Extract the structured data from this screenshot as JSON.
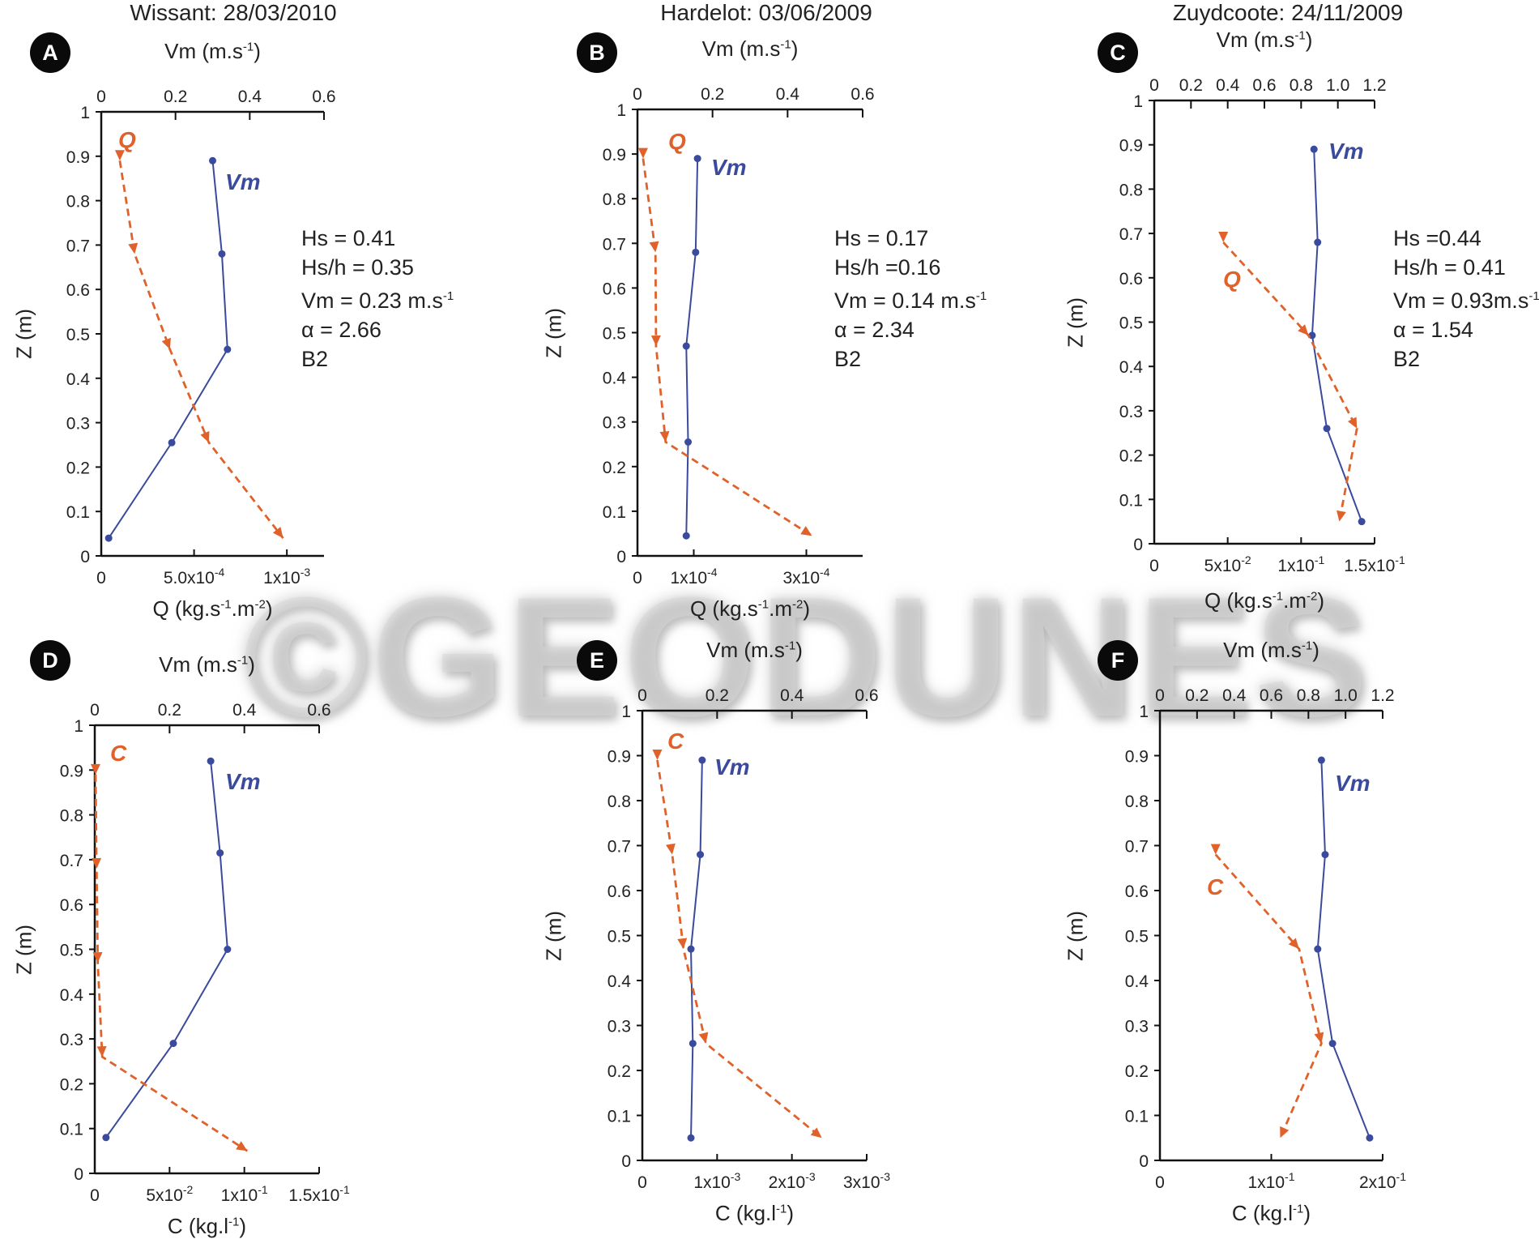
{
  "watermark": "©GEODUNES",
  "panels": [
    {
      "id": "A",
      "site": "Wissant: 28/03/2010",
      "top_axis_title": "Vm (m.s-1)",
      "bottom_axis_title": "Q (kg.s-1.m-2)",
      "ylabel": "Z (m)",
      "top_ticks": [
        "0",
        "0.2",
        "0.4",
        "0.6"
      ],
      "bottom_ticks": [
        "0",
        "5.0x10-4",
        "1x10-3"
      ],
      "stats": [
        "Hs = 0.41",
        "Hs/h = 0.35",
        "Vm = 0.23 m.s-1",
        "α = 2.66",
        "B2"
      ],
      "vm_label": "Vm",
      "sed_label": "Q",
      "chart_data": {
        "type": "line",
        "y": {
          "label": "Z (m)",
          "range": [
            0,
            1
          ],
          "ticks": [
            "0",
            "0.1",
            "0.2",
            "0.3",
            "0.4",
            "0.5",
            "0.6",
            "0.7",
            "0.8",
            "0.9",
            "1"
          ]
        },
        "x_top": {
          "label": "Vm (m.s-1)",
          "range": [
            0,
            0.6
          ]
        },
        "x_bottom": {
          "label": "Q (kg.s-1.m-2)",
          "range": [
            0,
            0.0012
          ]
        },
        "series": [
          {
            "name": "Vm",
            "axis": "top",
            "points": [
              [
                0.3,
                0.89
              ],
              [
                0.325,
                0.68
              ],
              [
                0.34,
                0.465
              ],
              [
                0.19,
                0.255
              ],
              [
                0.02,
                0.04
              ]
            ]
          },
          {
            "name": "Q",
            "axis": "bottom",
            "points": [
              [
                0.0001,
                0.89
              ],
              [
                0.00018,
                0.68
              ],
              [
                0.00037,
                0.465
              ],
              [
                0.00058,
                0.255
              ],
              [
                0.00098,
                0.04
              ]
            ]
          }
        ]
      }
    },
    {
      "id": "B",
      "site": "Hardelot: 03/06/2009",
      "top_axis_title": "Vm (m.s-1)",
      "bottom_axis_title": "Q (kg.s-1.m-2)",
      "ylabel": "Z (m)",
      "top_ticks": [
        "0",
        "0.2",
        "0.4",
        "0.6"
      ],
      "bottom_ticks": [
        "0",
        "1x10-4",
        "3x10-4"
      ],
      "stats": [
        "Hs = 0.17",
        "Hs/h =0.16",
        "Vm = 0.14 m.s-1",
        "α = 2.34",
        "B2"
      ],
      "vm_label": "Vm",
      "sed_label": "Q",
      "chart_data": {
        "type": "line",
        "y": {
          "label": "Z (m)",
          "range": [
            0,
            1
          ],
          "ticks": [
            "0",
            "0.1",
            "0.2",
            "0.3",
            "0.4",
            "0.5",
            "0.6",
            "0.7",
            "0.8",
            "0.9",
            "1"
          ]
        },
        "x_top": {
          "label": "Vm (m.s-1)",
          "range": [
            0,
            0.6
          ]
        },
        "x_bottom": {
          "label": "Q (kg.s-1.m-2)",
          "range": [
            0,
            0.0004
          ]
        },
        "series": [
          {
            "name": "Vm",
            "axis": "top",
            "points": [
              [
                0.16,
                0.89
              ],
              [
                0.155,
                0.68
              ],
              [
                0.13,
                0.47
              ],
              [
                0.135,
                0.255
              ],
              [
                0.13,
                0.045
              ]
            ]
          },
          {
            "name": "Q",
            "axis": "bottom",
            "points": [
              [
                1e-05,
                0.89
              ],
              [
                3.2e-05,
                0.68
              ],
              [
                3.3e-05,
                0.47
              ],
              [
                5e-05,
                0.255
              ],
              [
                0.00031,
                0.045
              ]
            ]
          }
        ]
      }
    },
    {
      "id": "C",
      "site": "Zuydcoote: 24/11/2009",
      "top_axis_title": "Vm (m.s-1)",
      "bottom_axis_title": "Q (kg.s-1.m-2)",
      "ylabel": "Z (m)",
      "top_ticks": [
        "0",
        "0.2",
        "0.4",
        "0.6",
        "0.8",
        "1.0",
        "1.2"
      ],
      "bottom_ticks": [
        "0",
        "5x10-2",
        "1x10-1",
        "1.5x10-1"
      ],
      "stats": [
        "Hs =0.44",
        "Hs/h = 0.41",
        "Vm = 0.93m.s-1",
        "α = 1.54",
        "B2"
      ],
      "vm_label": "Vm",
      "sed_label": "Q",
      "chart_data": {
        "type": "line",
        "y": {
          "label": "Z (m)",
          "range": [
            0,
            1
          ],
          "ticks": [
            "0",
            "0.1",
            "0.2",
            "0.3",
            "0.4",
            "0.5",
            "0.6",
            "0.7",
            "0.8",
            "0.9",
            "1"
          ]
        },
        "x_top": {
          "label": "Vm (m.s-1)",
          "range": [
            0,
            1.2
          ]
        },
        "x_bottom": {
          "label": "Q (kg.s-1.m-2)",
          "range": [
            0,
            0.15
          ]
        },
        "series": [
          {
            "name": "Vm",
            "axis": "top",
            "points": [
              [
                0.87,
                0.89
              ],
              [
                0.89,
                0.68
              ],
              [
                0.86,
                0.47
              ],
              [
                0.94,
                0.26
              ],
              [
                1.13,
                0.05
              ]
            ]
          },
          {
            "name": "Q",
            "axis": "bottom",
            "points": [
              [
                0.047,
                0.68
              ],
              [
                0.105,
                0.47
              ],
              [
                0.138,
                0.26
              ],
              [
                0.126,
                0.05
              ]
            ]
          }
        ]
      }
    },
    {
      "id": "D",
      "site": "",
      "top_axis_title": "Vm (m.s-1)",
      "bottom_axis_title": "C (kg.l-1)",
      "ylabel": "Z (m)",
      "top_ticks": [
        "0",
        "0.2",
        "0.4",
        "0.6"
      ],
      "bottom_ticks": [
        "0",
        "5x10-2",
        "1x10-1",
        "1.5x10-1"
      ],
      "stats": [],
      "vm_label": "Vm",
      "sed_label": "C",
      "chart_data": {
        "type": "line",
        "y": {
          "label": "Z (m)",
          "range": [
            0,
            1
          ],
          "ticks": [
            "0",
            "0.1",
            "0.2",
            "0.3",
            "0.4",
            "0.5",
            "0.6",
            "0.7",
            "0.8",
            "0.9",
            "1"
          ]
        },
        "x_top": {
          "label": "Vm (m.s-1)",
          "range": [
            0,
            0.6
          ]
        },
        "x_bottom": {
          "label": "C (kg.l-1)",
          "range": [
            0,
            0.15
          ]
        },
        "series": [
          {
            "name": "Vm",
            "axis": "top",
            "points": [
              [
                0.31,
                0.92
              ],
              [
                0.335,
                0.715
              ],
              [
                0.355,
                0.5
              ],
              [
                0.21,
                0.29
              ],
              [
                0.03,
                0.08
              ]
            ]
          },
          {
            "name": "C",
            "axis": "bottom",
            "points": [
              [
                0.0005,
                0.89
              ],
              [
                0.0012,
                0.68
              ],
              [
                0.002,
                0.47
              ],
              [
                0.005,
                0.26
              ],
              [
                0.102,
                0.05
              ]
            ]
          }
        ]
      }
    },
    {
      "id": "E",
      "site": "",
      "top_axis_title": "Vm (m.s-1)",
      "bottom_axis_title": "C (kg.l-1)",
      "ylabel": "Z (m)",
      "top_ticks": [
        "0",
        "0.2",
        "0.4",
        "0.6"
      ],
      "bottom_ticks": [
        "0",
        "1x10-3",
        "2x10-3",
        "3x10-3"
      ],
      "stats": [],
      "vm_label": "Vm",
      "sed_label": "C",
      "chart_data": {
        "type": "line",
        "y": {
          "label": "Z (m)",
          "range": [
            0,
            1
          ],
          "ticks": [
            "0",
            "0.1",
            "0.2",
            "0.3",
            "0.4",
            "0.5",
            "0.6",
            "0.7",
            "0.8",
            "0.9",
            "1"
          ]
        },
        "x_top": {
          "label": "Vm (m.s-1)",
          "range": [
            0,
            0.6
          ]
        },
        "x_bottom": {
          "label": "C (kg.l-1)",
          "range": [
            0,
            0.003
          ]
        },
        "series": [
          {
            "name": "Vm",
            "axis": "top",
            "points": [
              [
                0.16,
                0.89
              ],
              [
                0.155,
                0.68
              ],
              [
                0.13,
                0.47
              ],
              [
                0.135,
                0.26
              ],
              [
                0.13,
                0.05
              ]
            ]
          },
          {
            "name": "C",
            "axis": "bottom",
            "points": [
              [
                0.0002,
                0.89
              ],
              [
                0.0004,
                0.68
              ],
              [
                0.00055,
                0.47
              ],
              [
                0.00085,
                0.26
              ],
              [
                0.0024,
                0.05
              ]
            ]
          }
        ]
      }
    },
    {
      "id": "F",
      "site": "",
      "top_axis_title": "Vm (m.s-1)",
      "bottom_axis_title": "C (kg.l-1)",
      "ylabel": "Z (m)",
      "top_ticks": [
        "0",
        "0.2",
        "0.4",
        "0.6",
        "0.8",
        "1.0",
        "1.2"
      ],
      "bottom_ticks": [
        "0",
        "1x10-1",
        "2x10-1"
      ],
      "stats": [],
      "vm_label": "Vm",
      "sed_label": "C",
      "chart_data": {
        "type": "line",
        "y": {
          "label": "Z (m)",
          "range": [
            0,
            1
          ],
          "ticks": [
            "0",
            "0.1",
            "0.2",
            "0.3",
            "0.4",
            "0.5",
            "0.6",
            "0.7",
            "0.8",
            "0.9",
            "1"
          ]
        },
        "x_top": {
          "label": "Vm (m.s-1)",
          "range": [
            0,
            1.2
          ]
        },
        "x_bottom": {
          "label": "C (kg.l-1)",
          "range": [
            0,
            0.2
          ]
        },
        "series": [
          {
            "name": "Vm",
            "axis": "top",
            "points": [
              [
                0.87,
                0.89
              ],
              [
                0.89,
                0.68
              ],
              [
                0.85,
                0.47
              ],
              [
                0.93,
                0.26
              ],
              [
                1.13,
                0.05
              ]
            ]
          },
          {
            "name": "C",
            "axis": "bottom",
            "points": [
              [
                0.05,
                0.68
              ],
              [
                0.125,
                0.47
              ],
              [
                0.145,
                0.26
              ],
              [
                0.108,
                0.05
              ]
            ]
          }
        ]
      }
    }
  ],
  "colors": {
    "vm": "#3a4a9c",
    "sediment": "#e0622a",
    "axis": "#111111",
    "text": "#222222"
  }
}
